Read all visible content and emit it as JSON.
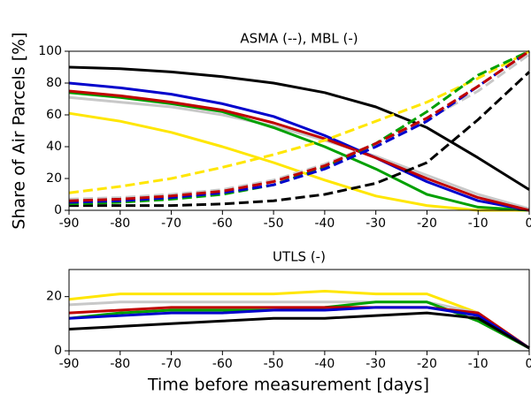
{
  "chart_data": [
    {
      "type": "line",
      "title": "ASMA (--), MBL (-)",
      "ylabel": "Share of Air Parcels [%]",
      "x": [
        -90,
        -80,
        -70,
        -60,
        -50,
        -40,
        -30,
        -20,
        -10,
        0
      ],
      "xlim": [
        -90,
        0
      ],
      "xticks": [
        -90,
        -80,
        -70,
        -60,
        -50,
        -40,
        -30,
        -20,
        -10,
        0
      ],
      "ylim": [
        0,
        100
      ],
      "yticks": [
        0,
        20,
        40,
        60,
        80,
        100
      ],
      "series": [
        {
          "color": "#000000",
          "line_style": "solid",
          "values": [
            90,
            89,
            87,
            84,
            80,
            74,
            65,
            52,
            33,
            13
          ]
        },
        {
          "color": "#c8c8c8",
          "line_style": "solid",
          "values": [
            71,
            68,
            65,
            60,
            53,
            44,
            34,
            22,
            10,
            1
          ]
        },
        {
          "color": "#ffe600",
          "line_style": "solid",
          "values": [
            61,
            56,
            49,
            40,
            30,
            19,
            9,
            3,
            0,
            0
          ]
        },
        {
          "color": "#00a000",
          "line_style": "solid",
          "values": [
            74,
            71,
            67,
            62,
            52,
            40,
            26,
            10,
            2,
            0
          ]
        },
        {
          "color": "#0000cc",
          "line_style": "solid",
          "values": [
            80,
            77,
            73,
            67,
            59,
            47,
            33,
            18,
            6,
            0
          ]
        },
        {
          "color": "#c00000",
          "line_style": "solid",
          "values": [
            75,
            72,
            68,
            63,
            55,
            45,
            33,
            20,
            8,
            0
          ]
        },
        {
          "color": "#000000",
          "line_style": "dashed",
          "values": [
            3,
            3,
            3,
            4,
            6,
            10,
            17,
            30,
            57,
            87
          ]
        },
        {
          "color": "#ffe600",
          "line_style": "dashed",
          "values": [
            11,
            15,
            20,
            27,
            35,
            44,
            56,
            68,
            83,
            100
          ]
        },
        {
          "color": "#c8c8c8",
          "line_style": "dashed",
          "values": [
            7,
            8,
            10,
            13,
            19,
            29,
            42,
            57,
            75,
            98
          ]
        },
        {
          "color": "#00a000",
          "line_style": "dashed",
          "values": [
            4,
            5,
            7,
            10,
            16,
            27,
            42,
            62,
            85,
            100
          ]
        },
        {
          "color": "#0000cc",
          "line_style": "dashed",
          "values": [
            5,
            6,
            8,
            11,
            16,
            26,
            40,
            56,
            78,
            100
          ]
        },
        {
          "color": "#c00000",
          "line_style": "dashed",
          "values": [
            6,
            7,
            9,
            12,
            18,
            28,
            42,
            58,
            78,
            100
          ]
        }
      ]
    },
    {
      "type": "line",
      "title": "UTLS (-)",
      "xlabel": "Time before measurement [days]",
      "x": [
        -90,
        -80,
        -70,
        -60,
        -50,
        -40,
        -30,
        -20,
        -10,
        0
      ],
      "xlim": [
        -90,
        0
      ],
      "xticks": [
        -90,
        -80,
        -70,
        -60,
        -50,
        -40,
        -30,
        -20,
        -10,
        0
      ],
      "ylim": [
        0,
        30
      ],
      "yticks": [
        0,
        20
      ],
      "series": [
        {
          "color": "#ffe600",
          "line_style": "solid",
          "values": [
            19,
            21,
            21,
            21,
            21,
            22,
            21,
            21,
            14,
            1
          ]
        },
        {
          "color": "#c8c8c8",
          "line_style": "solid",
          "values": [
            17,
            18,
            18,
            18,
            18,
            18,
            18,
            18,
            14,
            1
          ]
        },
        {
          "color": "#00a000",
          "line_style": "solid",
          "values": [
            12,
            14,
            15,
            15,
            15,
            16,
            18,
            18,
            11,
            1
          ]
        },
        {
          "color": "#c00000",
          "line_style": "solid",
          "values": [
            14,
            15,
            16,
            16,
            16,
            16,
            16,
            16,
            14,
            1
          ]
        },
        {
          "color": "#0000cc",
          "line_style": "solid",
          "values": [
            12,
            13,
            14,
            14,
            15,
            15,
            16,
            16,
            13,
            1
          ]
        },
        {
          "color": "#000000",
          "line_style": "solid",
          "values": [
            8,
            9,
            10,
            11,
            12,
            12,
            13,
            14,
            12,
            1
          ]
        }
      ]
    }
  ]
}
